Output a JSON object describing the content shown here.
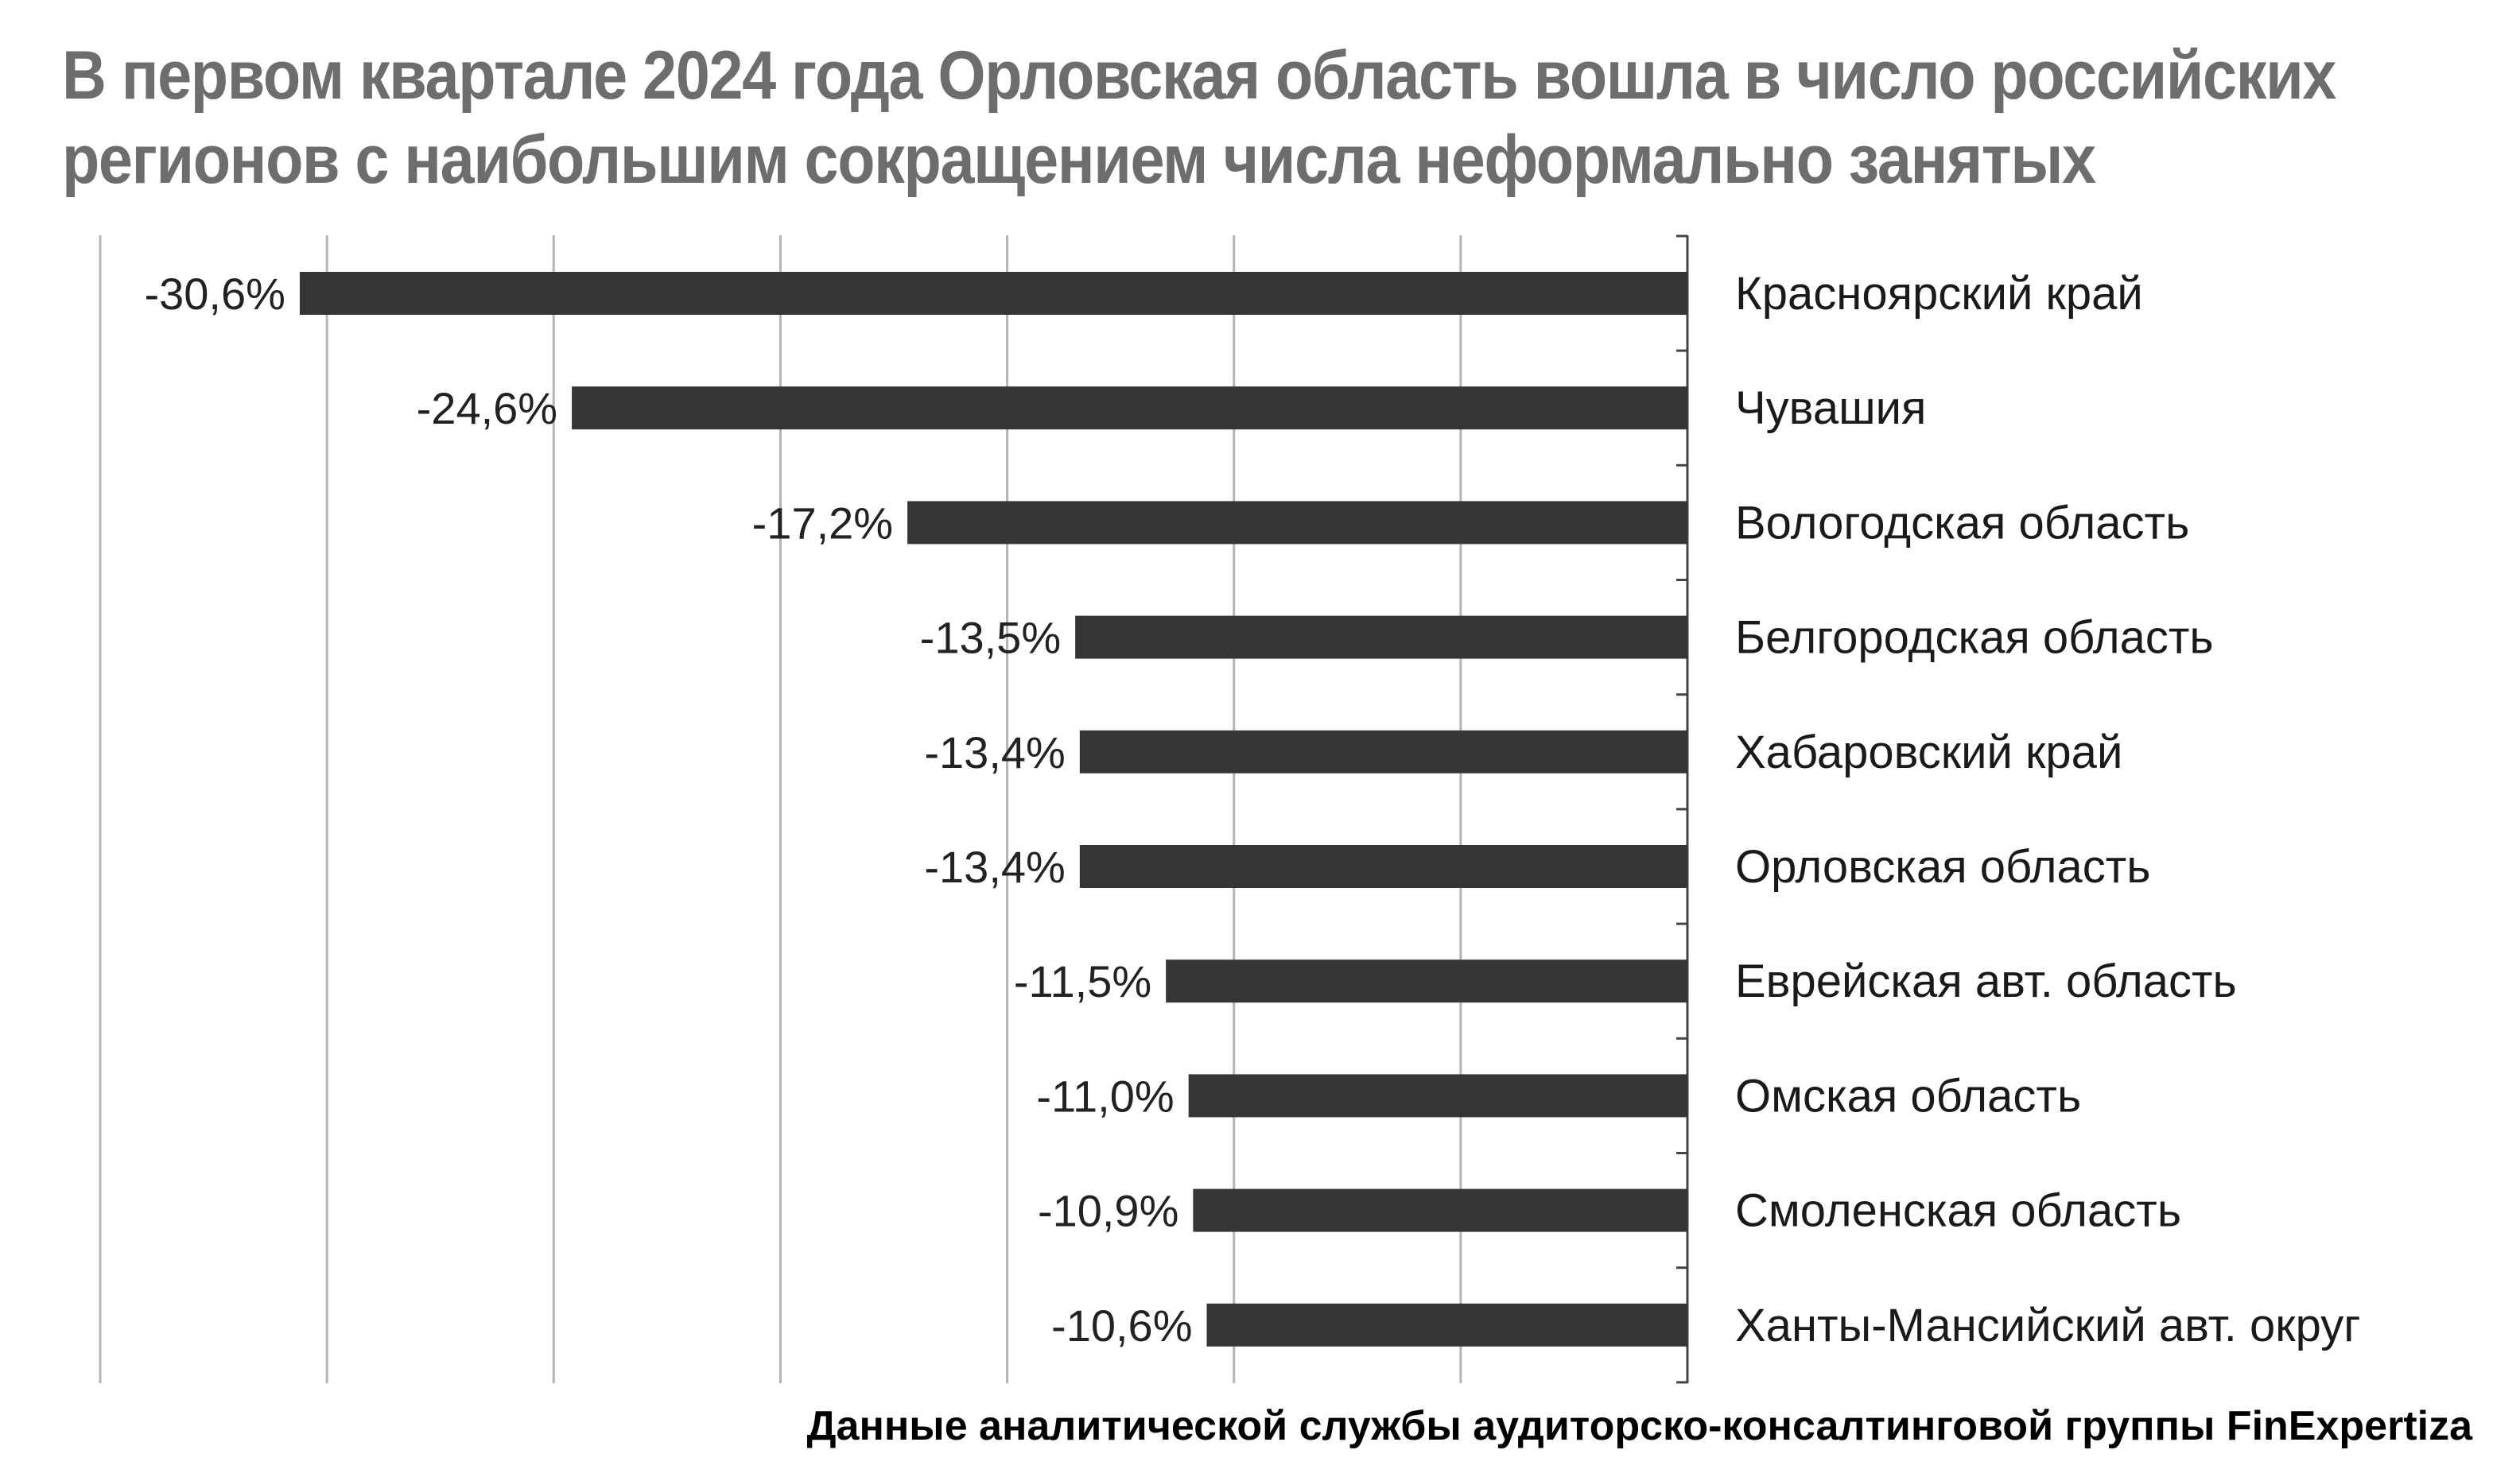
{
  "title_lines": [
    "В первом квартале 2024 года Орловская область вошла в число российских",
    "регионов с наибольшим сокращением числа неформально занятых"
  ],
  "source": "Данные аналитической службы аудиторско-консалтинговой группы FinExpertiza",
  "colors": {
    "title": "#6d6d6d",
    "bar": "#353535",
    "gridline": "#b5b5b5",
    "axis": "#444444",
    "text": "#1a1a1a"
  },
  "chart_data": {
    "type": "bar",
    "orientation": "horizontal",
    "categories": [
      "Красноярский край",
      "Чувашия",
      "Вологодская область",
      "Белгородская область",
      "Хабаровский край",
      "Орловская область",
      "Еврейская авт. область",
      "Омская область",
      "Смоленская область",
      "Ханты-Мансийский авт. округ"
    ],
    "values": [
      -30.6,
      -24.6,
      -17.2,
      -13.5,
      -13.4,
      -13.4,
      -11.5,
      -11.0,
      -10.9,
      -10.6
    ],
    "data_labels": [
      "-30,6%",
      "-24,6%",
      "-17,2%",
      "-13,5%",
      "-13,4%",
      "-13,4%",
      "-11,5%",
      "-11,0%",
      "-10,9%",
      "-10,6%"
    ],
    "unit": "%",
    "xlim": [
      -35,
      0
    ],
    "grid": true,
    "category_labels_side": "right"
  }
}
